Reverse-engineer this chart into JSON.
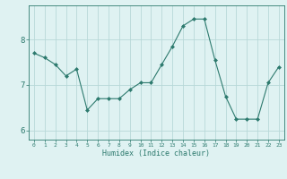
{
  "x": [
    0,
    1,
    2,
    3,
    4,
    5,
    6,
    7,
    8,
    9,
    10,
    11,
    12,
    13,
    14,
    15,
    16,
    17,
    18,
    19,
    20,
    21,
    22,
    23
  ],
  "y": [
    7.7,
    7.6,
    7.45,
    7.2,
    7.35,
    6.45,
    6.7,
    6.7,
    6.7,
    6.9,
    7.05,
    7.05,
    7.45,
    7.85,
    8.3,
    8.45,
    8.45,
    7.55,
    6.75,
    6.25,
    6.25,
    6.25,
    7.05,
    7.4
  ],
  "line_color": "#2d7a6e",
  "marker": "D",
  "marker_size": 2.0,
  "background_color": "#dff2f2",
  "grid_color": "#b8d8d8",
  "xlabel": "Humidex (Indice chaleur)",
  "ylim": [
    5.8,
    8.75
  ],
  "xlim": [
    -0.5,
    23.5
  ],
  "yticks": [
    6,
    7,
    8
  ],
  "xticks": [
    0,
    1,
    2,
    3,
    4,
    5,
    6,
    7,
    8,
    9,
    10,
    11,
    12,
    13,
    14,
    15,
    16,
    17,
    18,
    19,
    20,
    21,
    22,
    23
  ]
}
